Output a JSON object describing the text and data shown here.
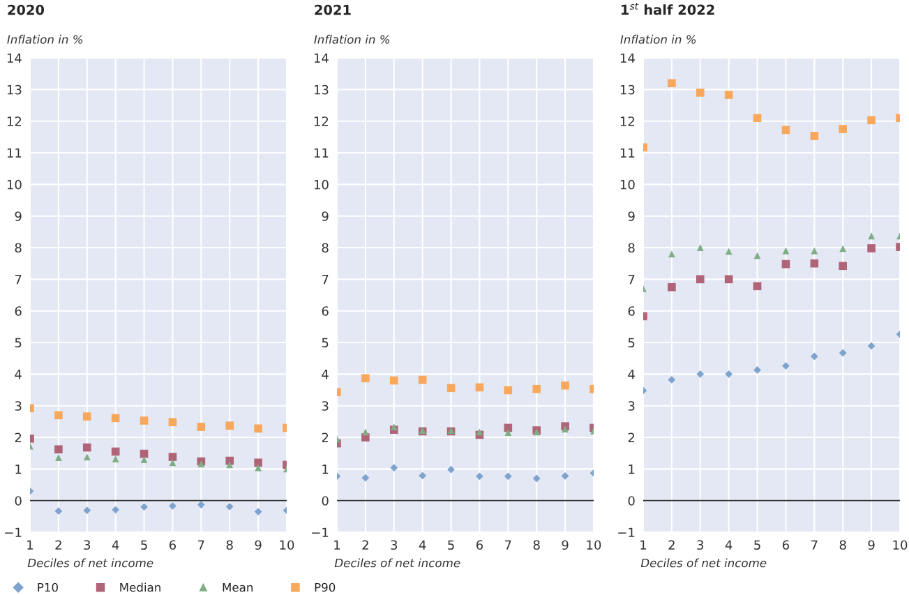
{
  "chart_data": [
    {
      "type": "scatter",
      "title": "2020",
      "ylabel": "Inflation in %",
      "xlabel": "Deciles of net income",
      "x": [
        1,
        2,
        3,
        4,
        5,
        6,
        7,
        8,
        9,
        10
      ],
      "xlim": [
        1,
        10
      ],
      "xticks": [
        1,
        2,
        3,
        4,
        5,
        6,
        7,
        8,
        9,
        10
      ],
      "ylim": [
        -1,
        14
      ],
      "yticks": [
        -1,
        0,
        1,
        2,
        3,
        4,
        5,
        6,
        7,
        8,
        9,
        10,
        11,
        12,
        13,
        14
      ],
      "grid": true,
      "legend": "bottom",
      "ref_lines": [
        {
          "axis": "y",
          "value": 0,
          "color": "#333333"
        }
      ],
      "series": [
        {
          "name": "P10",
          "color": "#7ea3cc",
          "marker": "diamond",
          "values": [
            0.3,
            -0.33,
            -0.31,
            -0.29,
            -0.2,
            -0.17,
            -0.13,
            -0.19,
            -0.35,
            -0.31
          ]
        },
        {
          "name": "Median",
          "color": "#b06477",
          "marker": "square",
          "values": [
            1.96,
            1.62,
            1.68,
            1.55,
            1.48,
            1.38,
            1.24,
            1.26,
            1.2,
            1.13
          ]
        },
        {
          "name": "Mean",
          "color": "#7fae85",
          "marker": "triangle",
          "values": [
            1.72,
            1.36,
            1.38,
            1.32,
            1.29,
            1.2,
            1.16,
            1.13,
            1.04,
            1.0
          ]
        },
        {
          "name": "P90",
          "color": "#f7a85c",
          "marker": "square",
          "values": [
            2.92,
            2.7,
            2.66,
            2.61,
            2.53,
            2.48,
            2.33,
            2.37,
            2.28,
            2.3
          ]
        }
      ]
    },
    {
      "type": "scatter",
      "title": "2021",
      "ylabel": "Inflation in %",
      "xlabel": "Deciles of net income",
      "x": [
        1,
        2,
        3,
        4,
        5,
        6,
        7,
        8,
        9,
        10
      ],
      "xlim": [
        1,
        10
      ],
      "xticks": [
        1,
        2,
        3,
        4,
        5,
        6,
        7,
        8,
        9,
        10
      ],
      "ylim": [
        -1,
        14
      ],
      "yticks": [
        -1,
        0,
        1,
        2,
        3,
        4,
        5,
        6,
        7,
        8,
        9,
        10,
        11,
        12,
        13,
        14
      ],
      "grid": true,
      "ref_lines": [
        {
          "axis": "y",
          "value": 0,
          "color": "#333333"
        }
      ],
      "series": [
        {
          "color": "#7ea3cc",
          "marker": "diamond",
          "values": [
            0.77,
            0.72,
            1.04,
            0.79,
            0.98,
            0.77,
            0.77,
            0.7,
            0.78,
            0.87
          ]
        },
        {
          "color": "#b06477",
          "marker": "square",
          "values": [
            1.81,
            2.0,
            2.24,
            2.19,
            2.19,
            2.08,
            2.3,
            2.22,
            2.35,
            2.3
          ]
        },
        {
          "color": "#7fae85",
          "marker": "triangle",
          "values": [
            1.95,
            2.17,
            2.33,
            2.22,
            2.22,
            2.17,
            2.15,
            2.17,
            2.26,
            2.2
          ]
        },
        {
          "color": "#f7a85c",
          "marker": "square",
          "values": [
            3.43,
            3.87,
            3.8,
            3.82,
            3.56,
            3.58,
            3.49,
            3.53,
            3.64,
            3.53
          ]
        }
      ]
    },
    {
      "type": "scatter",
      "title": "1$^{st}$ half 2022",
      "ylabel": "Inflation in %",
      "xlabel": "Deciles of net income",
      "x": [
        1,
        2,
        3,
        4,
        5,
        6,
        7,
        8,
        9,
        10
      ],
      "xlim": [
        1,
        10
      ],
      "xticks": [
        1,
        2,
        3,
        4,
        5,
        6,
        7,
        8,
        9,
        10
      ],
      "ylim": [
        -1,
        14
      ],
      "yticks": [
        -1,
        0,
        1,
        2,
        3,
        4,
        5,
        6,
        7,
        8,
        9,
        10,
        11,
        12,
        13,
        14
      ],
      "grid": true,
      "ref_lines": [
        {
          "axis": "y",
          "value": 0,
          "color": "#333333"
        }
      ],
      "series": [
        {
          "color": "#7ea3cc",
          "marker": "diamond",
          "values": [
            3.48,
            3.82,
            4.0,
            4.0,
            4.13,
            4.26,
            4.56,
            4.67,
            4.89,
            5.26
          ]
        },
        {
          "color": "#b06477",
          "marker": "square",
          "values": [
            5.83,
            6.75,
            7.0,
            7.0,
            6.78,
            7.48,
            7.5,
            7.42,
            7.98,
            8.02
          ]
        },
        {
          "color": "#7fae85",
          "marker": "triangle",
          "values": [
            6.7,
            7.8,
            8.0,
            7.88,
            7.75,
            7.9,
            7.9,
            7.97,
            8.37,
            8.37
          ]
        },
        {
          "color": "#f7a85c",
          "marker": "square",
          "values": [
            11.17,
            13.2,
            12.9,
            12.83,
            12.1,
            11.72,
            11.53,
            11.75,
            12.03,
            12.1
          ]
        }
      ]
    }
  ]
}
